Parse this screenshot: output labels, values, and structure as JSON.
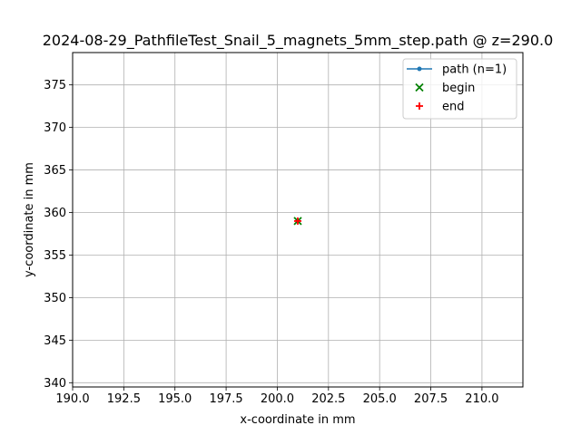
{
  "chart_data": {
    "type": "scatter",
    "title": "2024-08-29_PathfileTest_Snail_5_magnets_5mm_step.path @ z=290.0",
    "xlabel": "x-coordinate in mm",
    "ylabel": "y-coordinate in mm",
    "xlim": [
      190.0,
      212.0
    ],
    "ylim": [
      339.5,
      378.8
    ],
    "xticks": [
      190.0,
      192.5,
      195.0,
      197.5,
      200.0,
      202.5,
      205.0,
      207.5,
      210.0
    ],
    "xtick_labels": [
      "190.0",
      "192.5",
      "195.0",
      "197.5",
      "200.0",
      "202.5",
      "205.0",
      "207.5",
      "210.0"
    ],
    "yticks": [
      340,
      345,
      350,
      355,
      360,
      365,
      370,
      375
    ],
    "ytick_labels": [
      "340",
      "345",
      "350",
      "355",
      "360",
      "365",
      "370",
      "375"
    ],
    "grid": true,
    "legend_position": "top-right",
    "series": [
      {
        "name": "path (n=1)",
        "kind": "line-marker",
        "color": "#1f77b4",
        "x": [
          201.0
        ],
        "y": [
          359.0
        ]
      },
      {
        "name": "begin",
        "kind": "x-marker",
        "color": "#008000",
        "x": [
          201.0
        ],
        "y": [
          359.0
        ]
      },
      {
        "name": "end",
        "kind": "plus-marker",
        "color": "#ff0000",
        "x": [
          201.0
        ],
        "y": [
          359.0
        ]
      }
    ]
  }
}
